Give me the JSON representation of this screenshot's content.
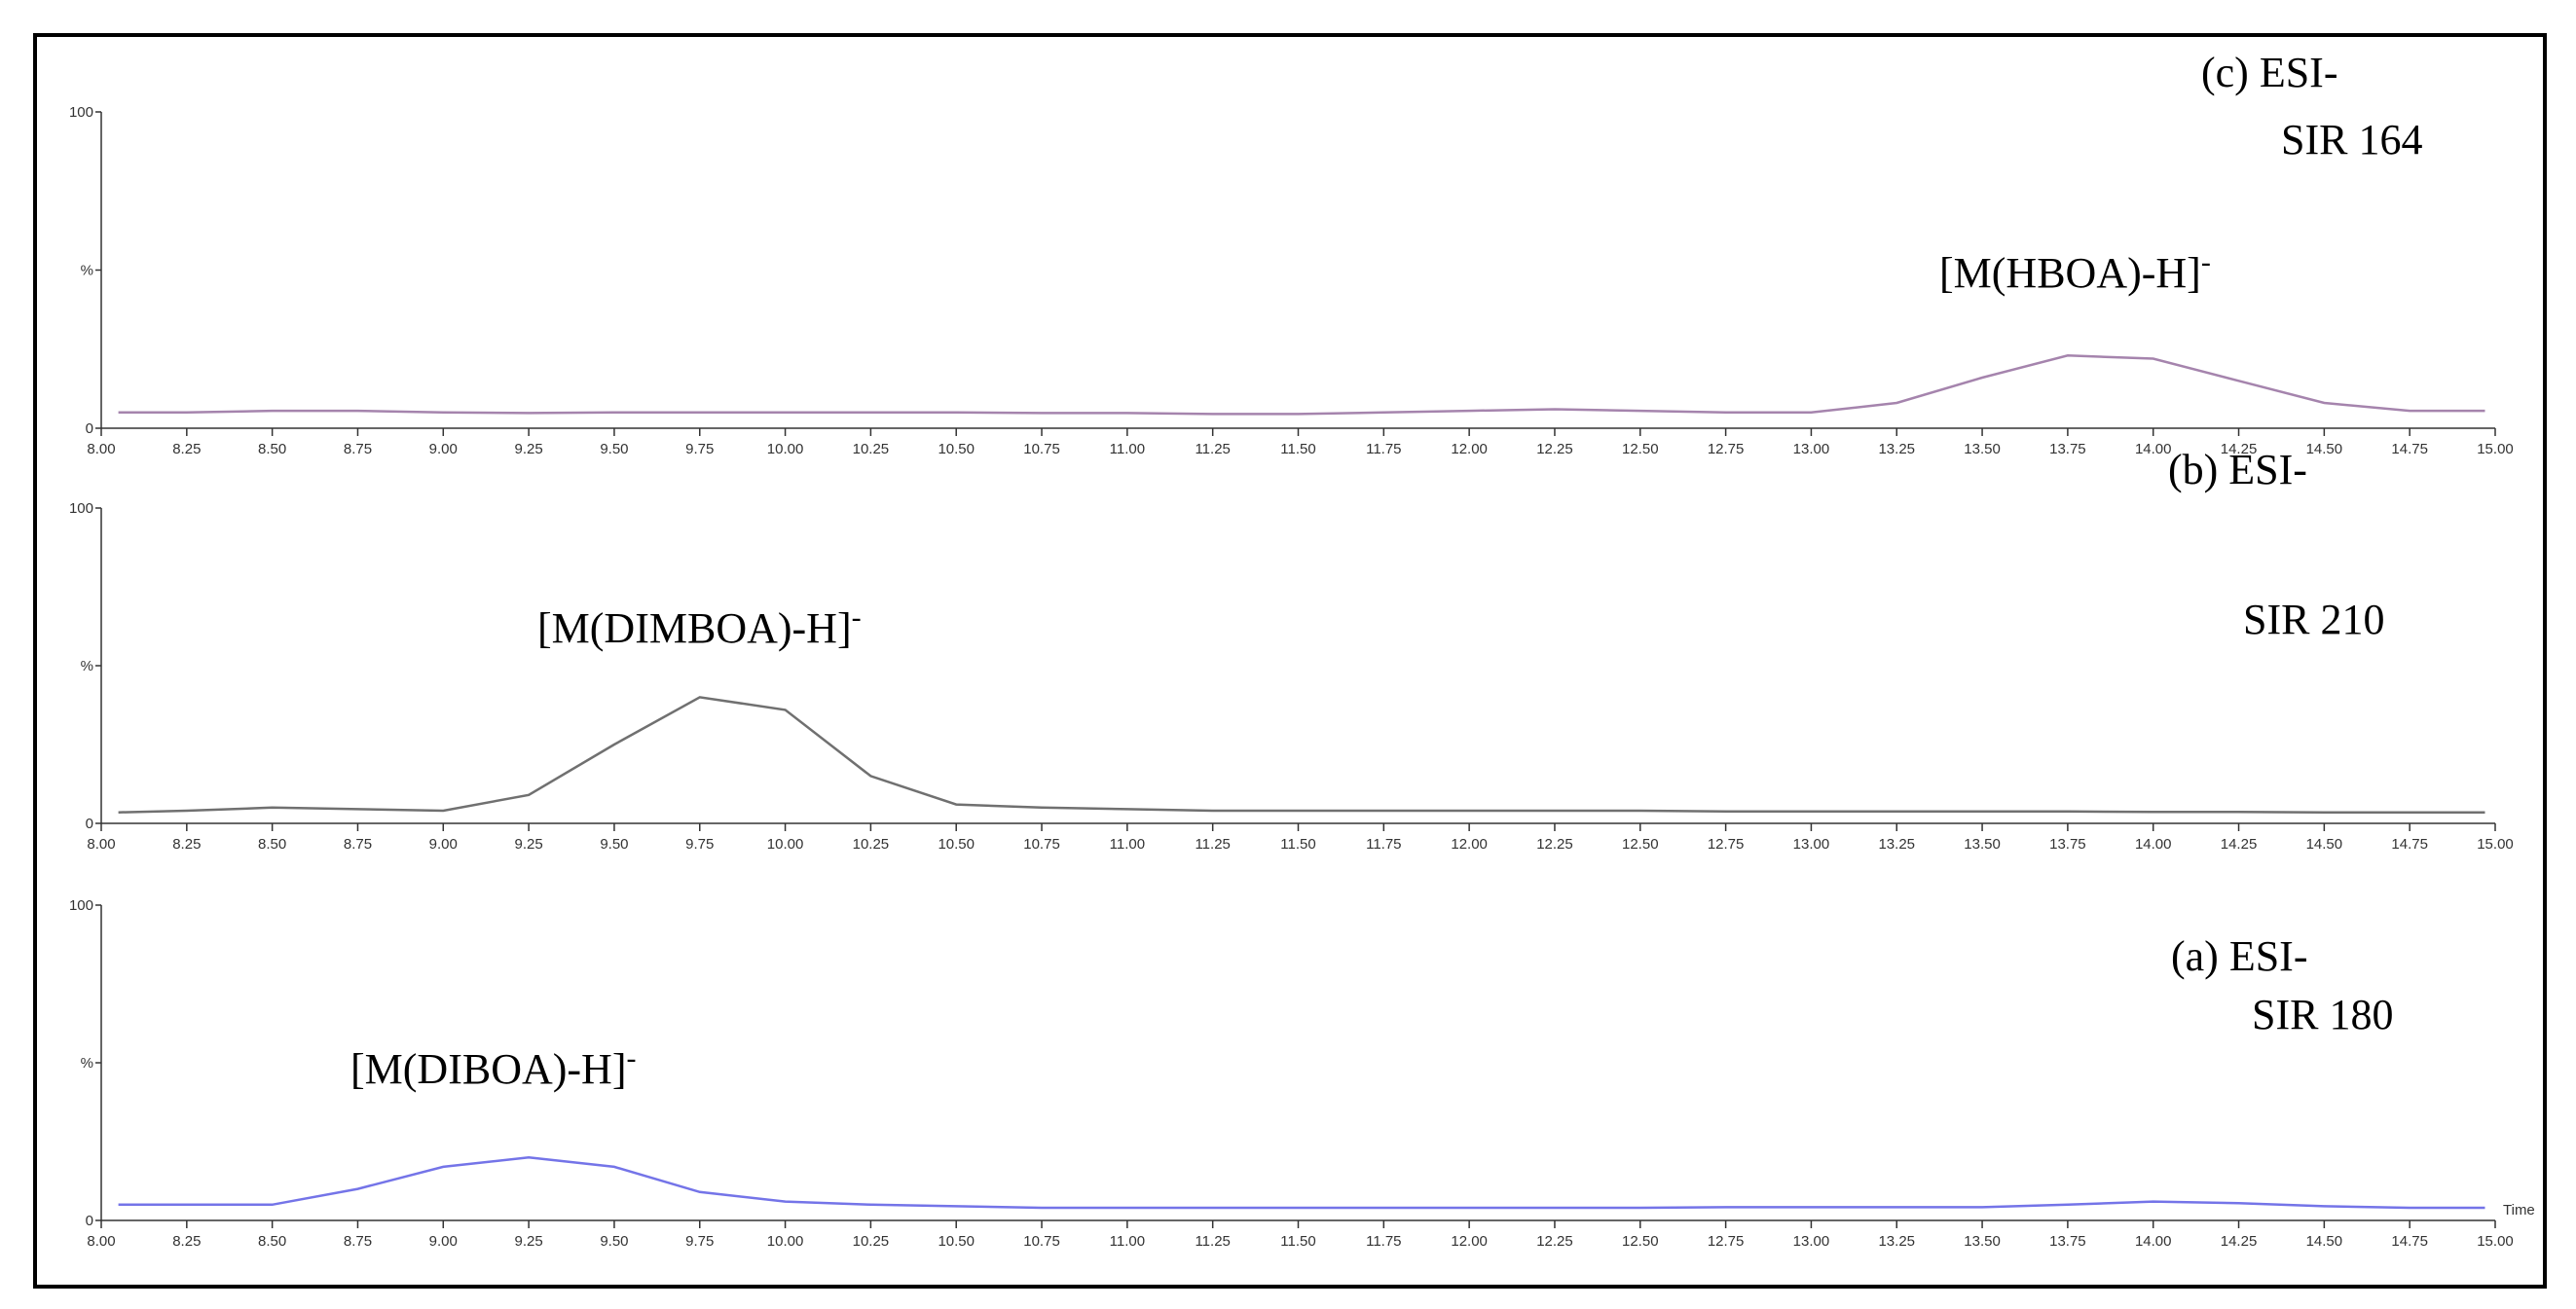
{
  "chart_data": [
    {
      "type": "line",
      "label_line1": "(c)  ESI-",
      "label_line2": "SIR 164",
      "peak_label": "[M(HBOA)-H]",
      "peak_charge": "-",
      "color": "#a584ad",
      "x": [
        8.05,
        8.25,
        8.5,
        8.75,
        9.0,
        9.25,
        9.5,
        9.75,
        10.0,
        10.25,
        10.5,
        10.75,
        11.0,
        11.25,
        11.5,
        11.75,
        12.0,
        12.25,
        12.5,
        12.75,
        13.0,
        13.25,
        13.5,
        13.75,
        14.0,
        14.25,
        14.5,
        14.75,
        14.97
      ],
      "values": [
        5,
        5,
        5.5,
        5.5,
        5,
        4.8,
        5,
        5,
        5,
        5,
        5,
        4.8,
        4.8,
        4.5,
        4.5,
        5,
        5.5,
        6,
        5.5,
        5,
        5,
        8,
        16,
        23,
        22,
        15,
        8,
        5.5,
        5.5
      ],
      "xlim": [
        8,
        15
      ],
      "ylim": [
        0,
        100
      ],
      "xticks": [
        {
          "value": 8,
          "label": "8.00"
        },
        {
          "value": 8.25,
          "label": "8.25"
        },
        {
          "value": 8.5,
          "label": "8.50"
        },
        {
          "value": 8.75,
          "label": "8.75"
        },
        {
          "value": 9,
          "label": "9.00"
        },
        {
          "value": 9.25,
          "label": "9.25"
        },
        {
          "value": 9.5,
          "label": "9.50"
        },
        {
          "value": 9.75,
          "label": "9.75"
        },
        {
          "value": 10,
          "label": "10.00"
        },
        {
          "value": 10.25,
          "label": "10.25"
        },
        {
          "value": 10.5,
          "label": "10.50"
        },
        {
          "value": 10.75,
          "label": "10.75"
        },
        {
          "value": 11,
          "label": "11.00"
        },
        {
          "value": 11.25,
          "label": "11.25"
        },
        {
          "value": 11.5,
          "label": "11.50"
        },
        {
          "value": 11.75,
          "label": "11.75"
        },
        {
          "value": 12,
          "label": "12.00"
        },
        {
          "value": 12.25,
          "label": "12.25"
        },
        {
          "value": 12.5,
          "label": "12.50"
        },
        {
          "value": 12.75,
          "label": "12.75"
        },
        {
          "value": 13,
          "label": "13.00"
        },
        {
          "value": 13.25,
          "label": "13.25"
        },
        {
          "value": 13.5,
          "label": "13.50"
        },
        {
          "value": 13.75,
          "label": "13.75"
        },
        {
          "value": 14,
          "label": "14.00"
        },
        {
          "value": 14.25,
          "label": "14.25"
        },
        {
          "value": 14.5,
          "label": "14.50"
        },
        {
          "value": 14.75,
          "label": "14.75"
        },
        {
          "value": 15,
          "label": "15.00"
        }
      ],
      "yticks": [
        0,
        {
          "value": 50,
          "label": "%"
        },
        100
      ]
    },
    {
      "type": "line",
      "label_line1": "(b) ESI-",
      "label_line2": "SIR 210",
      "peak_label": "[M(DIMBOA)-H]",
      "peak_charge": "-",
      "color": "#707070",
      "x": [
        8.05,
        8.25,
        8.5,
        8.75,
        9.0,
        9.25,
        9.5,
        9.75,
        10.0,
        10.25,
        10.5,
        10.75,
        11.0,
        11.25,
        11.5,
        11.75,
        12.0,
        12.25,
        12.5,
        12.75,
        13.0,
        13.25,
        13.5,
        13.75,
        14.0,
        14.25,
        14.5,
        14.75,
        14.97
      ],
      "values": [
        3.5,
        4,
        5,
        4.5,
        4,
        9,
        25,
        40,
        36,
        15,
        6,
        5,
        4.5,
        4,
        4,
        4,
        4,
        4,
        4,
        3.8,
        3.8,
        3.8,
        3.8,
        3.8,
        3.6,
        3.6,
        3.5,
        3.5,
        3.5
      ],
      "xlim": [
        8,
        15
      ],
      "ylim": [
        0,
        100
      ],
      "xticks": [
        {
          "value": 8,
          "label": "8.00"
        },
        {
          "value": 8.25,
          "label": "8.25"
        },
        {
          "value": 8.5,
          "label": "8.50"
        },
        {
          "value": 8.75,
          "label": "8.75"
        },
        {
          "value": 9,
          "label": "9.00"
        },
        {
          "value": 9.25,
          "label": "9.25"
        },
        {
          "value": 9.5,
          "label": "9.50"
        },
        {
          "value": 9.75,
          "label": "9.75"
        },
        {
          "value": 10,
          "label": "10.00"
        },
        {
          "value": 10.25,
          "label": "10.25"
        },
        {
          "value": 10.5,
          "label": "10.50"
        },
        {
          "value": 10.75,
          "label": "10.75"
        },
        {
          "value": 11,
          "label": "11.00"
        },
        {
          "value": 11.25,
          "label": "11.25"
        },
        {
          "value": 11.5,
          "label": "11.50"
        },
        {
          "value": 11.75,
          "label": "11.75"
        },
        {
          "value": 12,
          "label": "12.00"
        },
        {
          "value": 12.25,
          "label": "12.25"
        },
        {
          "value": 12.5,
          "label": "12.50"
        },
        {
          "value": 12.75,
          "label": "12.75"
        },
        {
          "value": 13,
          "label": "13.00"
        },
        {
          "value": 13.25,
          "label": "13.25"
        },
        {
          "value": 13.5,
          "label": "13.50"
        },
        {
          "value": 13.75,
          "label": "13.75"
        },
        {
          "value": 14,
          "label": "14.00"
        },
        {
          "value": 14.25,
          "label": "14.25"
        },
        {
          "value": 14.5,
          "label": "14.50"
        },
        {
          "value": 14.75,
          "label": "14.75"
        },
        {
          "value": 15,
          "label": "15.00"
        }
      ],
      "yticks": [
        0,
        {
          "value": 50,
          "label": "%"
        },
        100
      ]
    },
    {
      "type": "line",
      "label_line1": "(a)  ESI-",
      "label_line2": "SIR 180",
      "peak_label": "[M(DIBOA)-H]",
      "peak_charge": "-",
      "color": "#7474e8",
      "xlabel": "Time",
      "x": [
        8.05,
        8.25,
        8.5,
        8.75,
        9.0,
        9.25,
        9.5,
        9.75,
        10.0,
        10.25,
        10.5,
        10.75,
        11.0,
        11.25,
        11.5,
        11.75,
        12.0,
        12.25,
        12.5,
        12.75,
        13.0,
        13.25,
        13.5,
        13.75,
        14.0,
        14.25,
        14.5,
        14.75,
        14.97
      ],
      "values": [
        5,
        5,
        5,
        10,
        17,
        20,
        17,
        9,
        6,
        5,
        4.5,
        4,
        4,
        4,
        4,
        4,
        4,
        4,
        4,
        4.2,
        4.2,
        4.2,
        4.2,
        5,
        6,
        5.5,
        4.5,
        4,
        4
      ],
      "xlim": [
        8,
        15
      ],
      "ylim": [
        0,
        100
      ],
      "xticks": [
        {
          "value": 8,
          "label": "8.00"
        },
        {
          "value": 8.25,
          "label": "8.25"
        },
        {
          "value": 8.5,
          "label": "8.50"
        },
        {
          "value": 8.75,
          "label": "8.75"
        },
        {
          "value": 9,
          "label": "9.00"
        },
        {
          "value": 9.25,
          "label": "9.25"
        },
        {
          "value": 9.5,
          "label": "9.50"
        },
        {
          "value": 9.75,
          "label": "9.75"
        },
        {
          "value": 10,
          "label": "10.00"
        },
        {
          "value": 10.25,
          "label": "10.25"
        },
        {
          "value": 10.5,
          "label": "10.50"
        },
        {
          "value": 10.75,
          "label": "10.75"
        },
        {
          "value": 11,
          "label": "11.00"
        },
        {
          "value": 11.25,
          "label": "11.25"
        },
        {
          "value": 11.5,
          "label": "11.50"
        },
        {
          "value": 11.75,
          "label": "11.75"
        },
        {
          "value": 12,
          "label": "12.00"
        },
        {
          "value": 12.25,
          "label": "12.25"
        },
        {
          "value": 12.5,
          "label": "12.50"
        },
        {
          "value": 12.75,
          "label": "12.75"
        },
        {
          "value": 13,
          "label": "13.00"
        },
        {
          "value": 13.25,
          "label": "13.25"
        },
        {
          "value": 13.5,
          "label": "13.50"
        },
        {
          "value": 13.75,
          "label": "13.75"
        },
        {
          "value": 14,
          "label": "14.00"
        },
        {
          "value": 14.25,
          "label": "14.25"
        },
        {
          "value": 14.5,
          "label": "14.50"
        },
        {
          "value": 14.75,
          "label": "14.75"
        },
        {
          "value": 15,
          "label": "15.00"
        }
      ],
      "yticks": [
        0,
        {
          "value": 50,
          "label": "%"
        },
        100
      ]
    }
  ]
}
